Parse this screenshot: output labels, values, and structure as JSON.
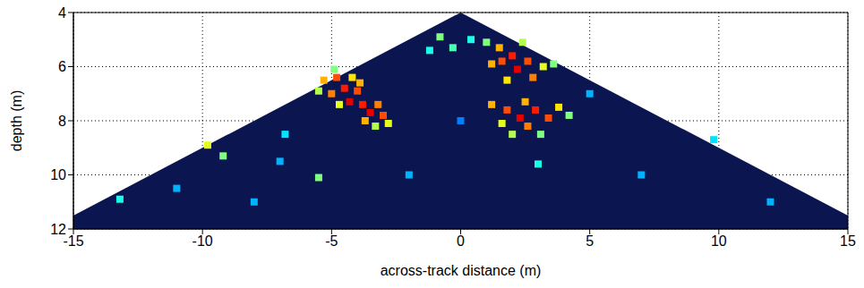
{
  "chart_data": {
    "type": "heatmap",
    "x_label": "across-track distance (m)",
    "y_label": "depth (m)",
    "xlim": [
      -15,
      15
    ],
    "xticks": [
      -15,
      -10,
      -5,
      0,
      5,
      10,
      15
    ],
    "ylim": [
      4,
      12
    ],
    "yticks": [
      4,
      6,
      8,
      10,
      12
    ],
    "grid": true,
    "clim": [
      0,
      1
    ],
    "wedge": {
      "x": [
        -15,
        0,
        15
      ],
      "depth": [
        11.5,
        4,
        11.5
      ]
    },
    "cells": [
      [
        -5.3,
        6.5,
        0.7
      ],
      [
        -4.8,
        6.4,
        0.8
      ],
      [
        -4.5,
        6.8,
        0.85
      ],
      [
        -5,
        7,
        0.75
      ],
      [
        -4,
        6.9,
        0.8
      ],
      [
        -4.3,
        7.3,
        0.9
      ],
      [
        -3.8,
        7.4,
        0.85
      ],
      [
        -3.5,
        7.7,
        0.9
      ],
      [
        -3,
        7.8,
        0.8
      ],
      [
        -3.2,
        7.4,
        0.75
      ],
      [
        -3.7,
        8,
        0.7
      ],
      [
        -4.7,
        7.4,
        0.6
      ],
      [
        -5.5,
        6.9,
        0.55
      ],
      [
        -4.2,
        6.4,
        0.65
      ],
      [
        -2.8,
        8.1,
        0.6
      ],
      [
        -3.9,
        6.6,
        0.7
      ],
      [
        -4.9,
        6.1,
        0.5
      ],
      [
        -3.3,
        8.2,
        0.55
      ],
      [
        1.5,
        5.3,
        0.7
      ],
      [
        2,
        5.6,
        0.85
      ],
      [
        2.6,
        5.8,
        0.8
      ],
      [
        1.2,
        5.9,
        0.7
      ],
      [
        2.2,
        6.1,
        0.9
      ],
      [
        2.8,
        6.4,
        0.75
      ],
      [
        1.8,
        6.5,
        0.65
      ],
      [
        3.2,
        6.0,
        0.6
      ],
      [
        1,
        5.1,
        0.5
      ],
      [
        2.4,
        5.1,
        0.55
      ],
      [
        3.6,
        5.9,
        0.5
      ],
      [
        1.6,
        5.8,
        0.8
      ],
      [
        1.2,
        7.4,
        0.7
      ],
      [
        1.8,
        7.6,
        0.8
      ],
      [
        2.3,
        7.9,
        0.9
      ],
      [
        2.9,
        7.6,
        0.85
      ],
      [
        3.4,
        7.9,
        0.8
      ],
      [
        2.6,
        8.2,
        0.75
      ],
      [
        3.8,
        7.5,
        0.65
      ],
      [
        1.6,
        8.1,
        0.6
      ],
      [
        2,
        8.5,
        0.55
      ],
      [
        3.1,
        8.5,
        0.5
      ],
      [
        4.2,
        7.8,
        0.5
      ],
      [
        2.5,
        7.3,
        0.7
      ],
      [
        -0.8,
        4.9,
        0.5
      ],
      [
        -0.3,
        5.3,
        0.45
      ],
      [
        0.4,
        5.0,
        0.4
      ],
      [
        -1.2,
        5.4,
        0.4
      ],
      [
        -9.8,
        8.9,
        0.6
      ],
      [
        -9.2,
        9.3,
        0.5
      ],
      [
        -13.2,
        10.9,
        0.4
      ],
      [
        -5.5,
        10.1,
        0.5
      ],
      [
        -6.8,
        8.5,
        0.35
      ],
      [
        -7,
        9.5,
        0.3
      ],
      [
        -11,
        10.5,
        0.3
      ],
      [
        5,
        7,
        0.3
      ],
      [
        9.8,
        8.7,
        0.35
      ],
      [
        7,
        10,
        0.3
      ],
      [
        -2,
        10,
        0.3
      ],
      [
        0,
        8,
        0.25
      ],
      [
        3,
        9.6,
        0.4
      ],
      [
        12,
        11,
        0.3
      ],
      [
        -8,
        11,
        0.3
      ]
    ]
  }
}
